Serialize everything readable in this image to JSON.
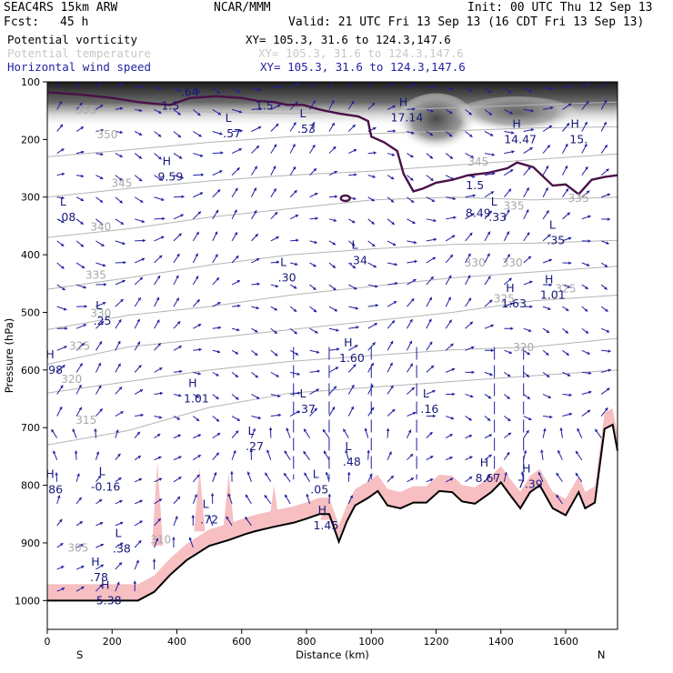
{
  "header": {
    "model": "SEAC4RS 15km ARW",
    "center": "NCAR/MMM",
    "init": "Init: 00 UTC Thu 12 Sep 13",
    "fcst_label": "Fcst:",
    "fcst_value": "45 h",
    "valid": "Valid: 21 UTC Fri 13 Sep 13 (16 CDT Fri 13 Sep 13)"
  },
  "legend": [
    {
      "label": "Potential vorticity",
      "xy": "XY= 105.3, 31.6 to 124.3,147.6",
      "color": "#000000"
    },
    {
      "label": "Potential temperature",
      "xy": "XY= 105.3, 31.6 to 124.3,147.6",
      "color": "#c8c8c8"
    },
    {
      "label": "Horizontal wind speed",
      "xy": "XY= 105.3, 31.6 to 124.3,147.6",
      "color": "#1f1fa0"
    }
  ],
  "chart_data": {
    "type": "cross-section",
    "xlabel": "Distance (km)",
    "ylabel": "Pressure (hPa)",
    "xlim": [
      0,
      1760
    ],
    "ylim": [
      1050,
      100
    ],
    "x_ticks": [
      0,
      200,
      400,
      600,
      800,
      1000,
      1200,
      1400,
      1600
    ],
    "y_ticks": [
      100,
      200,
      300,
      400,
      500,
      600,
      700,
      800,
      900,
      1000
    ],
    "x_end_labels": {
      "left": "S",
      "right": "N"
    },
    "theta_contours": [
      {
        "label": "355",
        "lx": 120,
        "lp": 155
      },
      {
        "label": "350",
        "lx": 185,
        "lp": 198
      },
      {
        "label": "345",
        "lx": 230,
        "lp": 282
      },
      {
        "label": "340",
        "lx": 165,
        "lp": 358
      },
      {
        "label": "335",
        "lx": 150,
        "lp": 442
      },
      {
        "label": "330",
        "lx": 165,
        "lp": 508
      },
      {
        "label": "325",
        "lx": 100,
        "lp": 565
      },
      {
        "label": "320",
        "lx": 75,
        "lp": 622
      },
      {
        "label": "315",
        "lx": 120,
        "lp": 693
      },
      {
        "label": "310",
        "lx": 350,
        "lp": 901
      },
      {
        "label": "305",
        "lx": 95,
        "lp": 915
      },
      {
        "label": "335",
        "lx": 1440,
        "lp": 322
      },
      {
        "label": "330",
        "lx": 1320,
        "lp": 420
      },
      {
        "label": "330",
        "lx": 1435,
        "lp": 420
      },
      {
        "label": "325",
        "lx": 1410,
        "lp": 483
      },
      {
        "label": "325",
        "lx": 1600,
        "lp": 465
      },
      {
        "label": "320",
        "lx": 1470,
        "lp": 567
      },
      {
        "label": "335",
        "lx": 1640,
        "lp": 308
      },
      {
        "label": "345",
        "lx": 1330,
        "lp": 245
      }
    ],
    "pv_contour_label": "1.5",
    "pv_contour_values": [
      {
        "x": 0,
        "p": 118
      },
      {
        "x": 100,
        "p": 122
      },
      {
        "x": 200,
        "p": 128
      },
      {
        "x": 280,
        "p": 135
      },
      {
        "x": 330,
        "p": 138
      },
      {
        "x": 380,
        "p": 140
      },
      {
        "x": 440,
        "p": 128
      },
      {
        "x": 520,
        "p": 125
      },
      {
        "x": 600,
        "p": 128
      },
      {
        "x": 650,
        "p": 133
      },
      {
        "x": 700,
        "p": 135
      },
      {
        "x": 740,
        "p": 140
      },
      {
        "x": 790,
        "p": 140
      },
      {
        "x": 840,
        "p": 148
      },
      {
        "x": 900,
        "p": 155
      },
      {
        "x": 960,
        "p": 160
      },
      {
        "x": 990,
        "p": 168
      },
      {
        "x": 1000,
        "p": 195
      },
      {
        "x": 1040,
        "p": 205
      },
      {
        "x": 1080,
        "p": 220
      },
      {
        "x": 1100,
        "p": 260
      },
      {
        "x": 1130,
        "p": 290
      },
      {
        "x": 1160,
        "p": 285
      },
      {
        "x": 1200,
        "p": 275
      },
      {
        "x": 1250,
        "p": 270
      },
      {
        "x": 1300,
        "p": 262
      },
      {
        "x": 1360,
        "p": 258
      },
      {
        "x": 1420,
        "p": 250
      },
      {
        "x": 1450,
        "p": 240
      },
      {
        "x": 1500,
        "p": 248
      },
      {
        "x": 1560,
        "p": 280
      },
      {
        "x": 1600,
        "p": 278
      },
      {
        "x": 1640,
        "p": 295
      },
      {
        "x": 1680,
        "p": 270
      },
      {
        "x": 1720,
        "p": 265
      },
      {
        "x": 1760,
        "p": 262
      }
    ],
    "terrain_values": [
      {
        "x": 0,
        "p": 1000
      },
      {
        "x": 280,
        "p": 1000
      },
      {
        "x": 330,
        "p": 985
      },
      {
        "x": 380,
        "p": 955
      },
      {
        "x": 430,
        "p": 930
      },
      {
        "x": 500,
        "p": 905
      },
      {
        "x": 560,
        "p": 895
      },
      {
        "x": 610,
        "p": 885
      },
      {
        "x": 640,
        "p": 880
      },
      {
        "x": 700,
        "p": 872
      },
      {
        "x": 760,
        "p": 865
      },
      {
        "x": 800,
        "p": 858
      },
      {
        "x": 840,
        "p": 850
      },
      {
        "x": 870,
        "p": 850
      },
      {
        "x": 900,
        "p": 898
      },
      {
        "x": 925,
        "p": 862
      },
      {
        "x": 950,
        "p": 835
      },
      {
        "x": 990,
        "p": 822
      },
      {
        "x": 1020,
        "p": 810
      },
      {
        "x": 1050,
        "p": 835
      },
      {
        "x": 1090,
        "p": 840
      },
      {
        "x": 1130,
        "p": 830
      },
      {
        "x": 1170,
        "p": 830
      },
      {
        "x": 1210,
        "p": 810
      },
      {
        "x": 1250,
        "p": 812
      },
      {
        "x": 1280,
        "p": 828
      },
      {
        "x": 1320,
        "p": 832
      },
      {
        "x": 1370,
        "p": 812
      },
      {
        "x": 1400,
        "p": 795
      },
      {
        "x": 1430,
        "p": 818
      },
      {
        "x": 1460,
        "p": 840
      },
      {
        "x": 1490,
        "p": 812
      },
      {
        "x": 1520,
        "p": 800
      },
      {
        "x": 1560,
        "p": 840
      },
      {
        "x": 1600,
        "p": 852
      },
      {
        "x": 1640,
        "p": 812
      },
      {
        "x": 1660,
        "p": 840
      },
      {
        "x": 1690,
        "p": 830
      },
      {
        "x": 1720,
        "p": 702
      },
      {
        "x": 1745,
        "p": 695
      },
      {
        "x": 1760,
        "p": 740
      }
    ],
    "extrema_labels": [
      {
        "type": "L",
        "value": ".64",
        "x": 440,
        "p": 118
      },
      {
        "type": "",
        "value": "1.5",
        "x": 380,
        "p": 142
      },
      {
        "type": "",
        "value": "1.5",
        "x": 670,
        "p": 142
      },
      {
        "type": "L",
        "value": ".57",
        "x": 570,
        "p": 190
      },
      {
        "type": "L",
        "value": ".53",
        "x": 800,
        "p": 182
      },
      {
        "type": "H",
        "value": "17.14",
        "x": 1110,
        "p": 162
      },
      {
        "type": "H",
        "value": "14.47",
        "x": 1460,
        "p": 200
      },
      {
        "type": "H",
        "value": "15.",
        "x": 1640,
        "p": 200
      },
      {
        "type": "H",
        "value": "9.59",
        "x": 380,
        "p": 265
      },
      {
        "type": "",
        "value": "1.5",
        "x": 1320,
        "p": 280
      },
      {
        "type": "L",
        "value": ".08",
        "x": 60,
        "p": 335
      },
      {
        "type": "L",
        "value": ".33",
        "x": 1390,
        "p": 335
      },
      {
        "type": "",
        "value": "8.49",
        "x": 1330,
        "p": 328
      },
      {
        "type": "L",
        "value": ".35",
        "x": 1570,
        "p": 375
      },
      {
        "type": "L",
        "value": ".34",
        "x": 960,
        "p": 410
      },
      {
        "type": "L",
        "value": ".30",
        "x": 740,
        "p": 440
      },
      {
        "type": "H",
        "value": "1.63",
        "x": 1440,
        "p": 485
      },
      {
        "type": "H",
        "value": "1.01",
        "x": 1560,
        "p": 470
      },
      {
        "type": "L",
        "value": ".25",
        "x": 170,
        "p": 515
      },
      {
        "type": "H",
        "value": "1.60",
        "x": 940,
        "p": 580
      },
      {
        "type": "H",
        "value": ".98",
        "x": 20,
        "p": 600
      },
      {
        "type": "H",
        "value": "1.01",
        "x": 460,
        "p": 650
      },
      {
        "type": "L",
        "value": ".37",
        "x": 800,
        "p": 668
      },
      {
        "type": "L",
        "value": ".16",
        "x": 1180,
        "p": 668
      },
      {
        "type": "L",
        "value": ".27",
        "x": 640,
        "p": 733
      },
      {
        "type": "L",
        "value": ".48",
        "x": 940,
        "p": 760
      },
      {
        "type": "H",
        "value": "8.67",
        "x": 1360,
        "p": 788
      },
      {
        "type": "H",
        "value": "7.39",
        "x": 1490,
        "p": 798
      },
      {
        "type": "L",
        "value": "-0.16",
        "x": 180,
        "p": 803
      },
      {
        "type": "H",
        "value": ".86",
        "x": 20,
        "p": 808
      },
      {
        "type": "L",
        "value": ".05",
        "x": 840,
        "p": 808
      },
      {
        "type": "L",
        "value": ".72",
        "x": 500,
        "p": 860
      },
      {
        "type": "H",
        "value": "1.45",
        "x": 860,
        "p": 870
      },
      {
        "type": "L",
        "value": ".38",
        "x": 230,
        "p": 910
      },
      {
        "type": "H",
        "value": ".78",
        "x": 160,
        "p": 960
      },
      {
        "type": "H",
        "value": "5.38",
        "x": 190,
        "p": 1000
      }
    ],
    "grid": false
  }
}
